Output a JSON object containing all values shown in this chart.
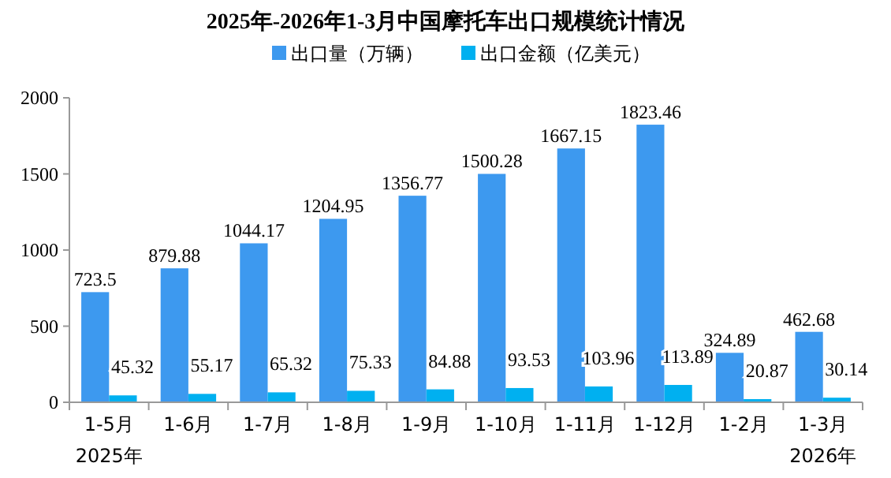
{
  "chart_data": {
    "type": "bar",
    "title": "2025年-2026年1-3月中国摩托车出口规模统计情况",
    "categories": [
      "1-5月",
      "1-6月",
      "1-7月",
      "1-8月",
      "1-9月",
      "1-10月",
      "1-11月",
      "1-12月",
      "1-2月",
      "1-3月"
    ],
    "series": [
      {
        "name": "出口量（万辆）",
        "color": "#3d99ef",
        "values": [
          723.5,
          879.88,
          1044.17,
          1204.95,
          1356.77,
          1500.28,
          1667.15,
          1823.46,
          324.89,
          462.68
        ]
      },
      {
        "name": "出口金额（亿美元）",
        "color": "#00b0f0",
        "values": [
          45.32,
          55.17,
          65.32,
          75.33,
          84.88,
          93.53,
          103.96,
          113.89,
          20.87,
          30.14
        ]
      }
    ],
    "ylim": [
      0,
      2000
    ],
    "yticks": [
      0,
      500,
      1000,
      1500,
      2000
    ],
    "grid": false,
    "legend": "top",
    "data_labels": true,
    "annotations": [
      "2025年",
      "2026年"
    ]
  }
}
